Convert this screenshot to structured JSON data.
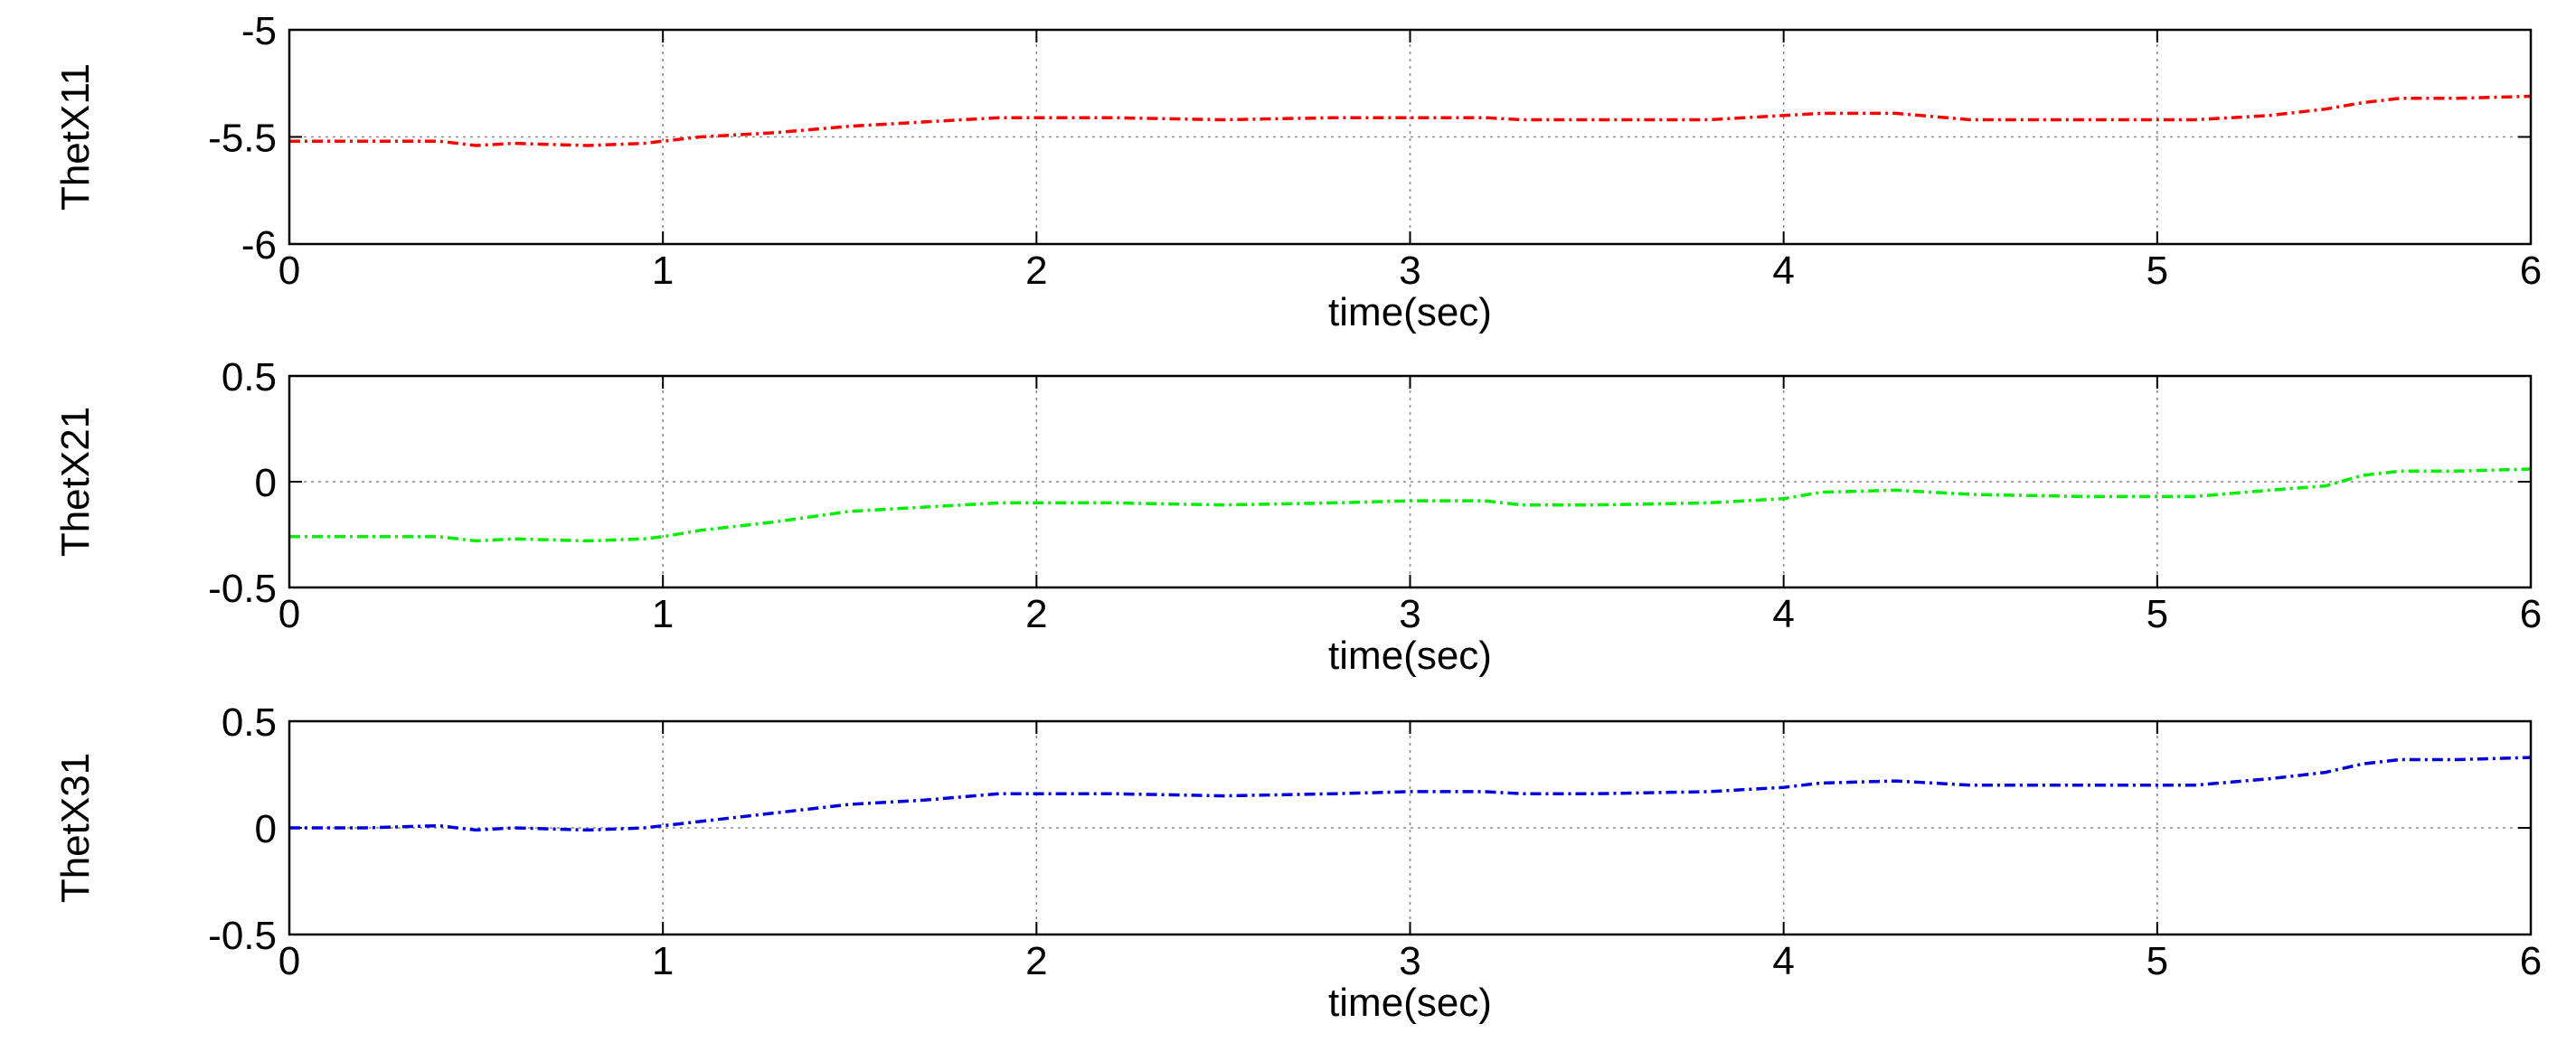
{
  "chart_data": [
    {
      "type": "line",
      "title": "",
      "xlabel": "time(sec)",
      "ylabel": "ThetX11",
      "xlim": [
        0,
        6
      ],
      "ylim": [
        -6,
        -5
      ],
      "xticks": [
        0,
        1,
        2,
        3,
        4,
        5,
        6
      ],
      "yticks": [
        -6,
        -5.5,
        -5
      ],
      "ytick_labels": [
        "-6",
        "-5.5",
        "-5"
      ],
      "grid": true,
      "series": [
        {
          "color": "#ff0000",
          "x": [
            0,
            0.2,
            0.4,
            0.5,
            0.6,
            0.8,
            0.95,
            1.0,
            1.1,
            1.3,
            1.5,
            1.7,
            1.9,
            2.0,
            2.2,
            2.5,
            2.8,
            3.0,
            3.2,
            3.3,
            3.5,
            3.8,
            4.0,
            4.1,
            4.3,
            4.5,
            4.8,
            5.0,
            5.1,
            5.3,
            5.45,
            5.55,
            5.65,
            5.8,
            6.0
          ],
          "y": [
            -5.52,
            -5.52,
            -5.52,
            -5.54,
            -5.53,
            -5.54,
            -5.53,
            -5.52,
            -5.5,
            -5.48,
            -5.45,
            -5.43,
            -5.41,
            -5.41,
            -5.41,
            -5.42,
            -5.41,
            -5.41,
            -5.41,
            -5.42,
            -5.42,
            -5.42,
            -5.4,
            -5.39,
            -5.39,
            -5.42,
            -5.42,
            -5.42,
            -5.42,
            -5.4,
            -5.37,
            -5.34,
            -5.32,
            -5.32,
            -5.31
          ]
        }
      ]
    },
    {
      "type": "line",
      "title": "",
      "xlabel": "time(sec)",
      "ylabel": "ThetX21",
      "xlim": [
        0,
        6
      ],
      "ylim": [
        -0.5,
        0.5
      ],
      "xticks": [
        0,
        1,
        2,
        3,
        4,
        5,
        6
      ],
      "yticks": [
        -0.5,
        0,
        0.5
      ],
      "ytick_labels": [
        "-0.5",
        "0",
        "0.5"
      ],
      "grid": true,
      "series": [
        {
          "color": "#00ee00",
          "x": [
            0,
            0.2,
            0.4,
            0.5,
            0.6,
            0.8,
            0.95,
            1.0,
            1.1,
            1.3,
            1.5,
            1.7,
            1.9,
            2.0,
            2.2,
            2.5,
            2.8,
            3.0,
            3.2,
            3.3,
            3.5,
            3.8,
            4.0,
            4.1,
            4.3,
            4.5,
            4.8,
            5.0,
            5.1,
            5.3,
            5.45,
            5.55,
            5.65,
            5.8,
            6.0
          ],
          "y": [
            -0.26,
            -0.26,
            -0.26,
            -0.28,
            -0.27,
            -0.28,
            -0.27,
            -0.26,
            -0.23,
            -0.19,
            -0.14,
            -0.12,
            -0.1,
            -0.1,
            -0.1,
            -0.11,
            -0.1,
            -0.09,
            -0.09,
            -0.11,
            -0.11,
            -0.1,
            -0.08,
            -0.05,
            -0.04,
            -0.06,
            -0.07,
            -0.07,
            -0.07,
            -0.04,
            -0.02,
            0.03,
            0.05,
            0.05,
            0.06
          ]
        }
      ]
    },
    {
      "type": "line",
      "title": "",
      "xlabel": "time(sec)",
      "ylabel": "ThetX31",
      "xlim": [
        0,
        6
      ],
      "ylim": [
        -0.5,
        0.5
      ],
      "xticks": [
        0,
        1,
        2,
        3,
        4,
        5,
        6
      ],
      "yticks": [
        -0.5,
        0,
        0.5
      ],
      "ytick_labels": [
        "-0.5",
        "0",
        "0.5"
      ],
      "grid": true,
      "series": [
        {
          "color": "#0000dd",
          "x": [
            0,
            0.2,
            0.4,
            0.5,
            0.6,
            0.8,
            0.95,
            1.0,
            1.1,
            1.3,
            1.5,
            1.7,
            1.9,
            2.0,
            2.2,
            2.5,
            2.8,
            3.0,
            3.2,
            3.3,
            3.5,
            3.8,
            4.0,
            4.1,
            4.3,
            4.5,
            4.8,
            5.0,
            5.1,
            5.3,
            5.45,
            5.55,
            5.65,
            5.8,
            6.0
          ],
          "y": [
            0.0,
            0.0,
            0.01,
            -0.01,
            0.0,
            -0.01,
            0.0,
            0.01,
            0.03,
            0.07,
            0.11,
            0.13,
            0.16,
            0.16,
            0.16,
            0.15,
            0.16,
            0.17,
            0.17,
            0.16,
            0.16,
            0.17,
            0.19,
            0.21,
            0.22,
            0.2,
            0.2,
            0.2,
            0.2,
            0.23,
            0.26,
            0.3,
            0.32,
            0.32,
            0.33
          ]
        }
      ]
    }
  ]
}
